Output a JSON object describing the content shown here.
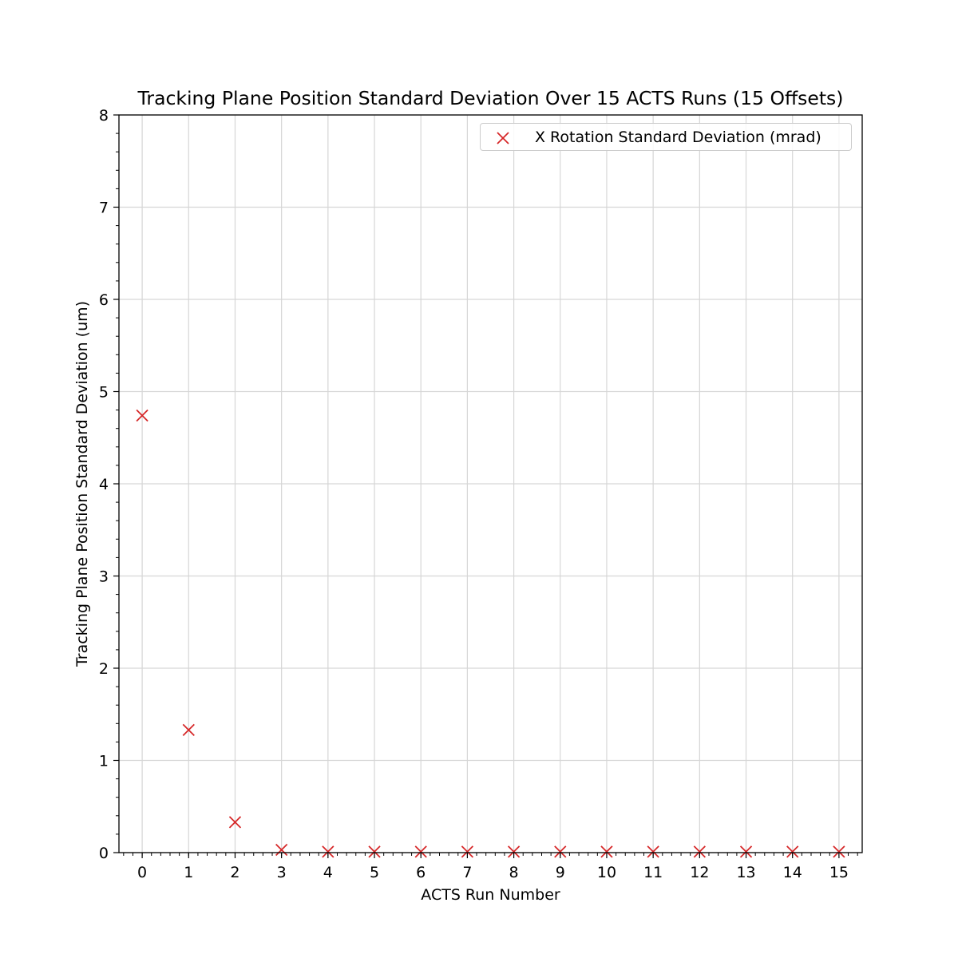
{
  "chart_data": {
    "type": "scatter",
    "title": "Tracking Plane Position Standard Deviation Over 15 ACTS Runs (15 Offsets)",
    "xlabel": "ACTS Run Number",
    "ylabel": "Tracking Plane Position Standard Deviation (um)",
    "xlim": [
      -0.5,
      15.5
    ],
    "ylim": [
      0,
      8
    ],
    "x_ticks": [
      0,
      1,
      2,
      3,
      4,
      5,
      6,
      7,
      8,
      9,
      10,
      11,
      12,
      13,
      14,
      15
    ],
    "y_ticks": [
      0,
      1,
      2,
      3,
      4,
      5,
      6,
      7,
      8
    ],
    "grid": true,
    "legend_position": "top-right",
    "series": [
      {
        "name": "X Rotation Standard Deviation (mrad)",
        "marker": "x",
        "color": "#d62728",
        "x": [
          0,
          1,
          2,
          3,
          4,
          5,
          6,
          7,
          8,
          9,
          10,
          11,
          12,
          13,
          14,
          15
        ],
        "y": [
          4.74,
          1.33,
          0.33,
          0.03,
          0.01,
          0.01,
          0.01,
          0.01,
          0.01,
          0.01,
          0.01,
          0.01,
          0.01,
          0.01,
          0.01,
          0.01
        ]
      }
    ]
  }
}
